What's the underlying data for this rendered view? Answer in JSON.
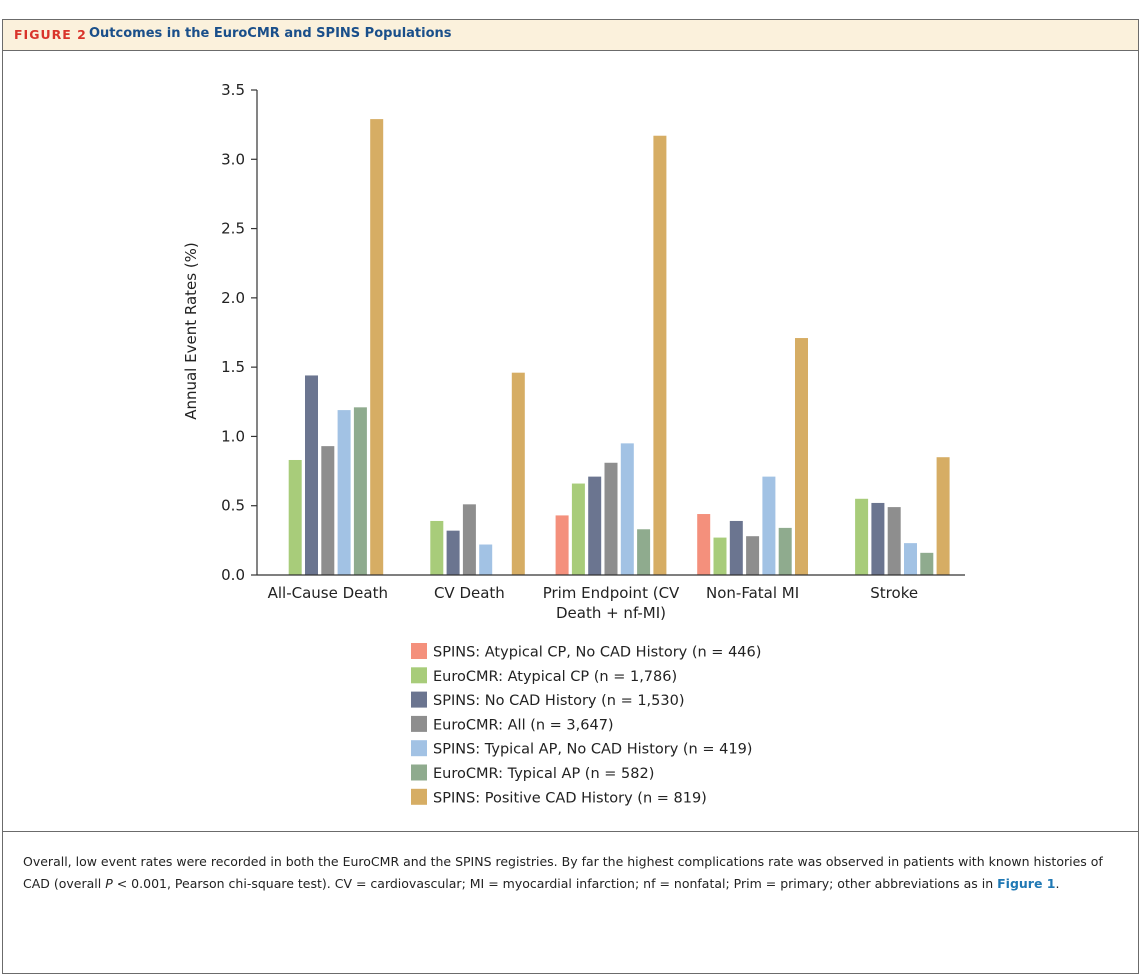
{
  "figure": {
    "label": "FIGURE 2",
    "title": "Outcomes in the EuroCMR and SPINS Populations"
  },
  "chart_data": {
    "type": "bar",
    "title": "",
    "xlabel": "",
    "ylabel": "Annual Event Rates (%)",
    "ylim": [
      0,
      3.5
    ],
    "yticks": [
      "0.0",
      "0.5",
      "1.0",
      "1.5",
      "2.0",
      "2.5",
      "3.0",
      "3.5"
    ],
    "grid": false,
    "legend_placement": "bottom",
    "categories": [
      [
        "All-Cause Death"
      ],
      [
        "CV Death"
      ],
      [
        "Prim Endpoint (CV",
        "Death + nf-MI)"
      ],
      [
        "Non-Fatal MI"
      ],
      [
        "Stroke"
      ]
    ],
    "series": [
      {
        "name": "SPINS: Atypical CP, No CAD History (n = 446)",
        "color": "#f4907c",
        "values": [
          null,
          null,
          0.43,
          0.44,
          null
        ]
      },
      {
        "name": "EuroCMR: Atypical CP (n = 1,786)",
        "color": "#a8cc7a",
        "values": [
          0.83,
          0.39,
          0.66,
          0.27,
          0.55
        ]
      },
      {
        "name": "SPINS: No CAD History (n = 1,530)",
        "color": "#6b7590",
        "values": [
          1.44,
          0.32,
          0.71,
          0.39,
          0.52
        ]
      },
      {
        "name": "EuroCMR: All (n = 3,647)",
        "color": "#8e8e8e",
        "values": [
          0.93,
          0.51,
          0.81,
          0.28,
          0.49
        ]
      },
      {
        "name": "SPINS: Typical AP, No CAD History (n = 419)",
        "color": "#a2c2e4",
        "values": [
          1.19,
          0.22,
          0.95,
          0.71,
          0.23
        ]
      },
      {
        "name": "EuroCMR: Typical AP (n = 582)",
        "color": "#8fab8e",
        "values": [
          1.21,
          null,
          0.33,
          0.34,
          0.16
        ]
      },
      {
        "name": "SPINS: Positive CAD History (n = 819)",
        "color": "#d6ad64",
        "values": [
          3.29,
          1.46,
          3.17,
          1.71,
          0.85
        ]
      }
    ]
  },
  "caption": {
    "part1": "Overall, low event rates were recorded in both the EuroCMR and the SPINS registries. By far the highest complications rate was observed in patients with known histories of CAD (overall ",
    "p_symbol": "P",
    "part2": " < 0.001, Pearson chi-square test). CV = cardiovascular; MI = myocardial infarction; nf = nonfatal; Prim = primary; other abbreviations as in ",
    "link": "Figure 1",
    "part3": "."
  }
}
